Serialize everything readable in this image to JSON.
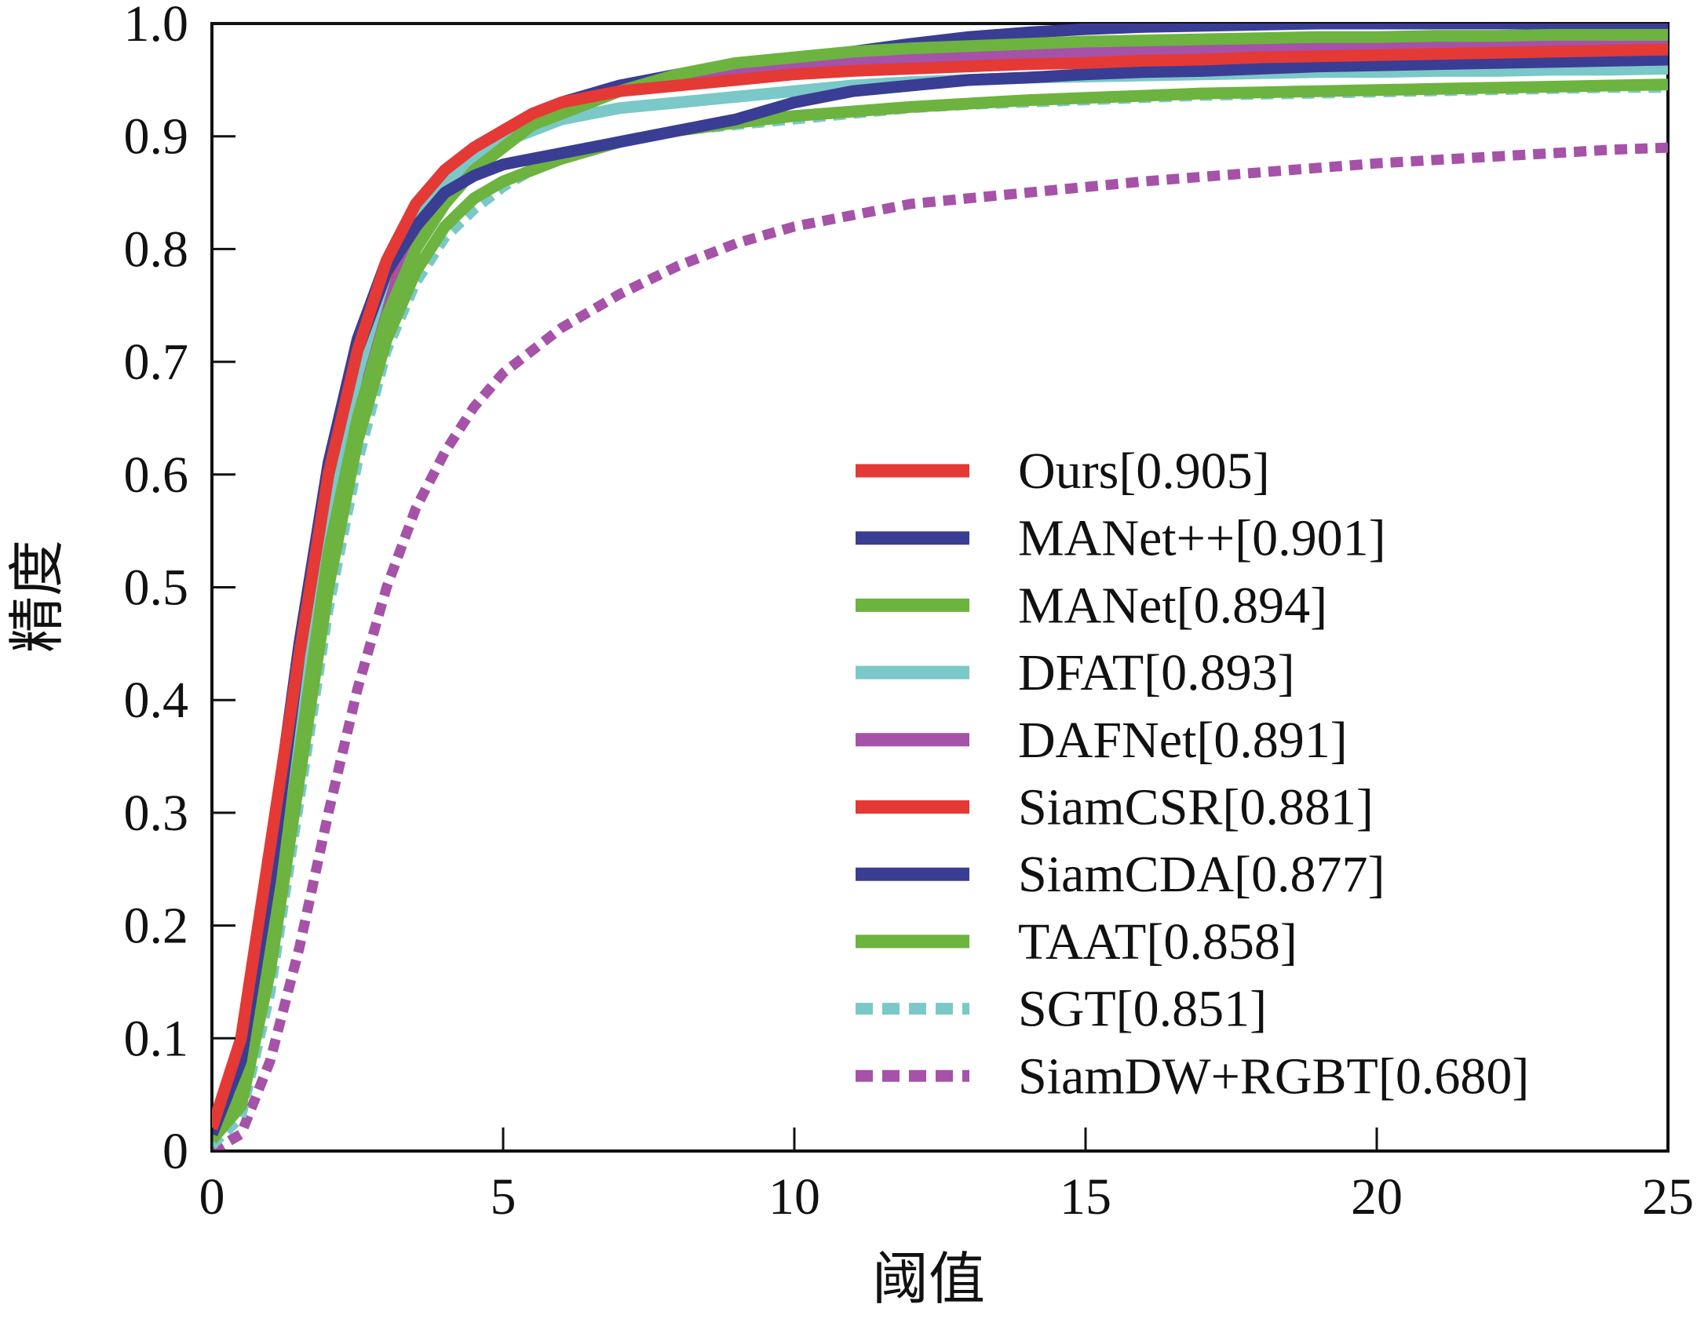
{
  "chart_data": {
    "type": "line",
    "title": "",
    "xlabel": "阈值",
    "ylabel": "精度",
    "xlim": [
      0,
      25
    ],
    "ylim": [
      0,
      1
    ],
    "x_ticks": [
      "0",
      "5",
      "10",
      "15",
      "20",
      "25"
    ],
    "y_ticks": [
      "0",
      "0.1",
      "0.2",
      "0.3",
      "0.4",
      "0.5",
      "0.6",
      "0.7",
      "0.8",
      "0.9",
      "1.0"
    ],
    "grid": false,
    "legend_position": "lower-right",
    "x": [
      0,
      0.5,
      1,
      1.5,
      2,
      2.5,
      3,
      3.5,
      4,
      4.5,
      5,
      5.5,
      6,
      7,
      8,
      9,
      10,
      11,
      12,
      13,
      14,
      15,
      16,
      17,
      18,
      19,
      20,
      21,
      22,
      23,
      24,
      25
    ],
    "series": [
      {
        "name": "Ours[0.905]",
        "color": "#e53935",
        "style": "solid",
        "values": [
          0.02,
          0.1,
          0.27,
          0.44,
          0.6,
          0.71,
          0.79,
          0.84,
          0.87,
          0.89,
          0.905,
          0.92,
          0.93,
          0.94,
          0.945,
          0.95,
          0.955,
          0.958,
          0.96,
          0.962,
          0.964,
          0.965,
          0.967,
          0.968,
          0.97,
          0.971,
          0.972,
          0.973,
          0.974,
          0.975,
          0.976,
          0.977
        ]
      },
      {
        "name": "MANet++[0.901]",
        "color": "#3a3d94",
        "style": "solid",
        "values": [
          0.015,
          0.08,
          0.24,
          0.44,
          0.6,
          0.71,
          0.78,
          0.82,
          0.85,
          0.865,
          0.875,
          0.88,
          0.885,
          0.895,
          0.905,
          0.915,
          0.93,
          0.94,
          0.945,
          0.95,
          0.952,
          0.955,
          0.957,
          0.958,
          0.96,
          0.962,
          0.963,
          0.964,
          0.965,
          0.966,
          0.967,
          0.968
        ]
      },
      {
        "name": "MANet[0.894]",
        "color": "#6db33f",
        "style": "solid",
        "values": [
          0.01,
          0.05,
          0.18,
          0.35,
          0.53,
          0.65,
          0.74,
          0.8,
          0.84,
          0.87,
          0.89,
          0.91,
          0.92,
          0.94,
          0.955,
          0.965,
          0.97,
          0.975,
          0.978,
          0.98,
          0.982,
          0.984,
          0.985,
          0.986,
          0.987,
          0.988,
          0.988,
          0.989,
          0.989,
          0.99,
          0.99,
          0.99
        ]
      },
      {
        "name": "DFAT[0.893]",
        "color": "#7ac8c8",
        "style": "solid",
        "values": [
          0.01,
          0.06,
          0.21,
          0.4,
          0.57,
          0.69,
          0.78,
          0.83,
          0.86,
          0.88,
          0.895,
          0.905,
          0.915,
          0.925,
          0.93,
          0.935,
          0.94,
          0.945,
          0.948,
          0.95,
          0.952,
          0.953,
          0.954,
          0.955,
          0.956,
          0.957,
          0.957,
          0.958,
          0.958,
          0.959,
          0.959,
          0.96
        ]
      },
      {
        "name": "DAFNet[0.891]",
        "color": "#a552a8",
        "style": "solid",
        "values": [
          0.01,
          0.05,
          0.19,
          0.37,
          0.55,
          0.67,
          0.75,
          0.81,
          0.85,
          0.88,
          0.9,
          0.915,
          0.925,
          0.94,
          0.95,
          0.955,
          0.96,
          0.965,
          0.968,
          0.97,
          0.972,
          0.974,
          0.975,
          0.976,
          0.977,
          0.978,
          0.978,
          0.979,
          0.979,
          0.98,
          0.98,
          0.98
        ]
      },
      {
        "name": "SiamCSR[0.881]",
        "color": "#e53935",
        "style": "solid",
        "values": [
          0.015,
          0.07,
          0.22,
          0.4,
          0.57,
          0.68,
          0.76,
          0.82,
          0.86,
          0.89,
          0.905,
          0.915,
          0.925,
          0.94,
          0.95,
          0.955,
          0.96,
          0.963,
          0.965,
          0.967,
          0.969,
          0.97,
          0.972,
          0.973,
          0.974,
          0.975,
          0.976,
          0.977,
          0.978,
          0.979,
          0.98,
          0.98
        ]
      },
      {
        "name": "SiamCDA[0.877]",
        "color": "#3a3d94",
        "style": "solid",
        "values": [
          0.02,
          0.09,
          0.26,
          0.45,
          0.61,
          0.72,
          0.79,
          0.84,
          0.87,
          0.89,
          0.905,
          0.92,
          0.93,
          0.945,
          0.955,
          0.962,
          0.968,
          0.975,
          0.982,
          0.988,
          0.992,
          0.995,
          0.997,
          0.998,
          0.999,
          1.0,
          1.0,
          1.0,
          1.0,
          1.0,
          1.0,
          1.0
        ]
      },
      {
        "name": "TAAT[0.858]",
        "color": "#6db33f",
        "style": "solid",
        "values": [
          0.01,
          0.04,
          0.16,
          0.33,
          0.5,
          0.63,
          0.72,
          0.78,
          0.82,
          0.845,
          0.86,
          0.87,
          0.88,
          0.895,
          0.905,
          0.912,
          0.918,
          0.922,
          0.926,
          0.929,
          0.932,
          0.934,
          0.936,
          0.938,
          0.939,
          0.94,
          0.941,
          0.942,
          0.943,
          0.944,
          0.945,
          0.946
        ]
      },
      {
        "name": "SGT[0.851]",
        "color": "#7ac8c8",
        "style": "dashed",
        "values": [
          0.005,
          0.03,
          0.14,
          0.31,
          0.48,
          0.61,
          0.71,
          0.77,
          0.81,
          0.835,
          0.855,
          0.87,
          0.88,
          0.895,
          0.905,
          0.91,
          0.915,
          0.92,
          0.925,
          0.928,
          0.93,
          0.932,
          0.934,
          0.936,
          0.937,
          0.938,
          0.939,
          0.94,
          0.941,
          0.942,
          0.943,
          0.943
        ]
      },
      {
        "name": "SiamDW+RGBT[0.680]",
        "color": "#a552a8",
        "style": "dashed",
        "values": [
          0.0,
          0.015,
          0.08,
          0.18,
          0.3,
          0.41,
          0.5,
          0.57,
          0.62,
          0.66,
          0.69,
          0.71,
          0.73,
          0.76,
          0.785,
          0.805,
          0.82,
          0.83,
          0.84,
          0.845,
          0.85,
          0.855,
          0.86,
          0.864,
          0.868,
          0.872,
          0.876,
          0.879,
          0.882,
          0.885,
          0.888,
          0.89
        ]
      }
    ]
  }
}
